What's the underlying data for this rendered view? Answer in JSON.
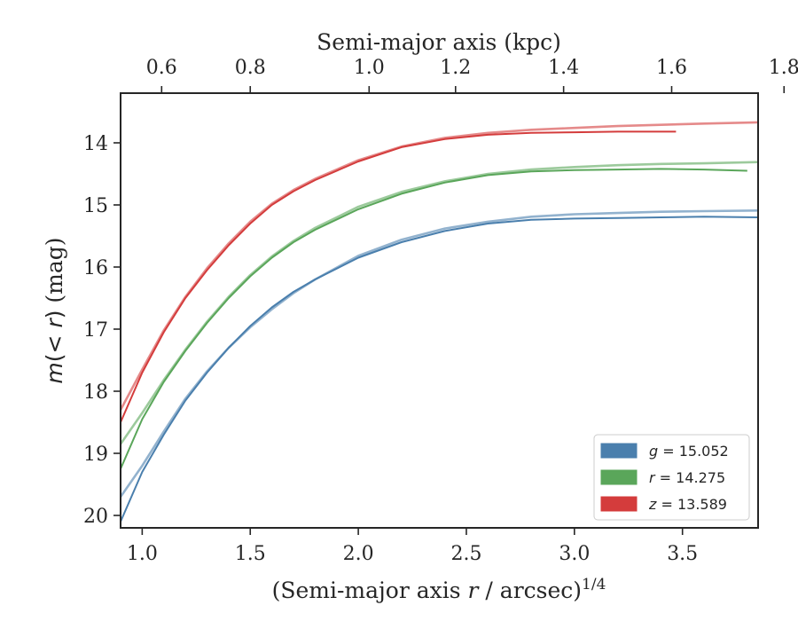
{
  "chart_data": {
    "type": "line",
    "xlabel": "(Semi-major axis r / arcsec)^1/4",
    "ylabel": "m(< r) (mag)",
    "top_xlabel": "Semi-major axis (kpc)",
    "xlim": [
      0.9,
      3.85
    ],
    "ylim": [
      20.2,
      13.2
    ],
    "y_inverted": true,
    "x_ticks": [
      1.0,
      1.5,
      2.0,
      2.5,
      3.0,
      3.5
    ],
    "x_tick_labels": [
      "1.0",
      "1.5",
      "2.0",
      "2.5",
      "3.0",
      "3.5"
    ],
    "y_ticks": [
      14,
      15,
      16,
      17,
      18,
      19,
      20
    ],
    "y_tick_labels": [
      "14",
      "15",
      "16",
      "17",
      "18",
      "19",
      "20"
    ],
    "top_x_ticks_kpc": [
      0.6,
      0.8,
      1.0,
      1.2,
      1.4,
      1.6,
      1.8
    ],
    "top_x_tick_labels": [
      "0.6",
      "0.8",
      "1.0",
      "1.2",
      "1.4",
      "1.6",
      "1.8"
    ],
    "top_x_tick_positions": [
      1.09,
      1.5,
      2.05,
      2.45,
      2.95,
      3.45,
      3.97
    ],
    "legend_position": "lower-right",
    "series": [
      {
        "name": "g = 15.052",
        "band": "g",
        "value": "15.052",
        "color": "#4a7fad",
        "data_x": [
          0.9,
          1.0,
          1.1,
          1.2,
          1.3,
          1.4,
          1.5,
          1.6,
          1.7,
          1.8,
          2.0,
          2.2,
          2.4,
          2.6,
          2.8,
          3.0,
          3.2,
          3.4,
          3.6,
          3.85
        ],
        "data_y": [
          20.1,
          19.3,
          18.7,
          18.15,
          17.7,
          17.3,
          16.95,
          16.65,
          16.4,
          16.2,
          15.85,
          15.6,
          15.42,
          15.3,
          15.24,
          15.22,
          15.21,
          15.2,
          15.19,
          15.2
        ],
        "model_x": [
          0.9,
          1.0,
          1.1,
          1.2,
          1.3,
          1.4,
          1.5,
          1.6,
          1.7,
          1.8,
          2.0,
          2.2,
          2.4,
          2.6,
          2.8,
          3.0,
          3.2,
          3.4,
          3.6,
          3.85
        ],
        "model_y": [
          19.7,
          19.2,
          18.65,
          18.12,
          17.68,
          17.3,
          16.97,
          16.68,
          16.42,
          16.2,
          15.82,
          15.56,
          15.38,
          15.27,
          15.19,
          15.15,
          15.13,
          15.11,
          15.1,
          15.09
        ]
      },
      {
        "name": "r = 14.275",
        "band": "r",
        "value": "14.275",
        "color": "#5aa65a",
        "data_x": [
          0.9,
          1.0,
          1.1,
          1.2,
          1.3,
          1.4,
          1.5,
          1.6,
          1.7,
          1.8,
          2.0,
          2.2,
          2.4,
          2.6,
          2.8,
          3.0,
          3.2,
          3.4,
          3.6,
          3.8
        ],
        "data_y": [
          19.25,
          18.45,
          17.85,
          17.35,
          16.9,
          16.5,
          16.15,
          15.85,
          15.6,
          15.4,
          15.07,
          14.82,
          14.64,
          14.52,
          14.46,
          14.44,
          14.43,
          14.42,
          14.43,
          14.45
        ],
        "model_x": [
          0.9,
          1.0,
          1.1,
          1.2,
          1.3,
          1.4,
          1.5,
          1.6,
          1.7,
          1.8,
          2.0,
          2.2,
          2.4,
          2.6,
          2.8,
          3.0,
          3.2,
          3.4,
          3.6,
          3.85
        ],
        "model_y": [
          18.85,
          18.35,
          17.82,
          17.33,
          16.88,
          16.48,
          16.13,
          15.83,
          15.58,
          15.37,
          15.03,
          14.79,
          14.62,
          14.5,
          14.43,
          14.39,
          14.36,
          14.34,
          14.33,
          14.31
        ]
      },
      {
        "name": "z = 13.589",
        "band": "z",
        "value": "13.589",
        "color": "#d43c3c",
        "data_x": [
          0.9,
          1.0,
          1.1,
          1.2,
          1.3,
          1.4,
          1.5,
          1.6,
          1.7,
          1.8,
          2.0,
          2.2,
          2.4,
          2.6,
          2.8,
          3.0,
          3.2,
          3.47
        ],
        "data_y": [
          18.5,
          17.7,
          17.05,
          16.5,
          16.05,
          15.65,
          15.3,
          15.0,
          14.78,
          14.6,
          14.3,
          14.07,
          13.94,
          13.87,
          13.84,
          13.83,
          13.82,
          13.82
        ],
        "model_x": [
          0.9,
          1.0,
          1.1,
          1.2,
          1.3,
          1.4,
          1.5,
          1.6,
          1.7,
          1.8,
          2.0,
          2.2,
          2.4,
          2.6,
          2.8,
          3.0,
          3.2,
          3.4,
          3.6,
          3.85
        ],
        "model_y": [
          18.3,
          17.65,
          17.02,
          16.48,
          16.02,
          15.62,
          15.27,
          14.98,
          14.76,
          14.58,
          14.28,
          14.06,
          13.92,
          13.84,
          13.79,
          13.76,
          13.73,
          13.71,
          13.69,
          13.67
        ]
      }
    ]
  }
}
